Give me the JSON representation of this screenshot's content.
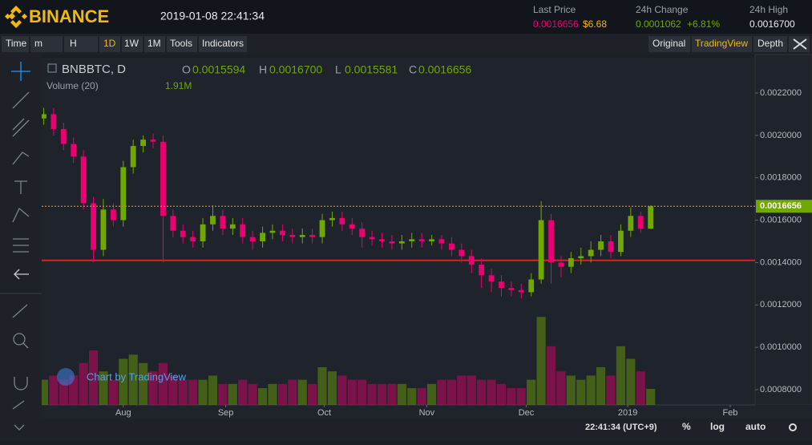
{
  "header": {
    "logo": "BINANCE",
    "datetime": "2019-01-08 22:41:34",
    "stats": [
      {
        "label": "Last Price",
        "values": [
          "0.0016656",
          "$6.68"
        ]
      },
      {
        "label": "24h Change",
        "values": [
          "0.0001062",
          "+6.81%"
        ]
      },
      {
        "label": "24h High",
        "values": [
          "0.0016700"
        ]
      }
    ]
  },
  "toolbar": {
    "left": [
      "Time",
      "m",
      "H",
      "1D",
      "1W",
      "1M",
      "Tools",
      "Indicators"
    ],
    "right": [
      "Original",
      "TradingView",
      "Depth"
    ]
  },
  "chart_data": {
    "type": "candlestick",
    "symbol": "BNBBTC, D",
    "legend": [
      {
        "label": "O",
        "value": "0.0015594"
      },
      {
        "label": "H",
        "value": "0.0016700"
      },
      {
        "label": "L",
        "value": "0.0015581"
      },
      {
        "label": "C",
        "value": "0.0016656"
      }
    ],
    "volume_label": "Volume (20)",
    "volume_value": "1.91M",
    "watermark": "Chart by TradingView",
    "up_color": "#70a800",
    "down_color": "#ea0070",
    "price_line_color": "#f57c00",
    "open": [
      0.00208,
      0.0021,
      0.00203,
      0.00196,
      0.0019,
      0.00168,
      0.00146,
      0.00165,
      0.0016,
      0.00185,
      0.00195,
      0.00198,
      0.00197,
      0.00162,
      0.00155,
      0.00152,
      0.0015,
      0.00158,
      0.00162,
      0.00156,
      0.00158,
      0.00152,
      0.0015,
      0.00154,
      0.00155,
      0.00153,
      0.00152,
      0.00153,
      0.00152,
      0.0016,
      0.00161,
      0.00158,
      0.00156,
      0.00152,
      0.00151,
      0.0015,
      0.00149,
      0.0015,
      0.00151,
      0.0015,
      0.00151,
      0.00149,
      0.00146,
      0.00143,
      0.00139,
      0.00134,
      0.00131,
      0.00128,
      0.00127,
      0.00126,
      0.00132,
      0.0016,
      0.0014,
      0.00138,
      0.00142,
      0.00143,
      0.00146,
      0.0015,
      0.00145,
      0.00155,
      0.00162,
      0.0015594
    ],
    "high": [
      0.00213,
      0.00213,
      0.00206,
      0.00199,
      0.00193,
      0.00171,
      0.0017,
      0.00168,
      0.00188,
      0.00198,
      0.002,
      0.00201,
      0.002,
      0.00165,
      0.00158,
      0.00155,
      0.00161,
      0.00167,
      0.00165,
      0.00161,
      0.00161,
      0.00155,
      0.00157,
      0.00158,
      0.00158,
      0.00156,
      0.00156,
      0.00156,
      0.00163,
      0.00164,
      0.00164,
      0.00161,
      0.00159,
      0.00155,
      0.00154,
      0.00153,
      0.00153,
      0.00154,
      0.00154,
      0.00153,
      0.00153,
      0.00152,
      0.00149,
      0.00146,
      0.00142,
      0.00137,
      0.00134,
      0.00131,
      0.0013,
      0.00135,
      0.00169,
      0.00163,
      0.00143,
      0.00145,
      0.00147,
      0.0015,
      0.00153,
      0.00153,
      0.00158,
      0.00166,
      0.00164,
      0.00167
    ],
    "low": [
      0.00205,
      0.002,
      0.00193,
      0.00187,
      0.00165,
      0.0014,
      0.00143,
      0.00157,
      0.00157,
      0.00182,
      0.00192,
      0.00194,
      0.0014,
      0.00152,
      0.00149,
      0.00147,
      0.00147,
      0.00155,
      0.00153,
      0.00153,
      0.00149,
      0.00146,
      0.00147,
      0.00151,
      0.0015,
      0.00149,
      0.00149,
      0.00149,
      0.00149,
      0.00157,
      0.00155,
      0.00153,
      0.00147,
      0.00148,
      0.00147,
      0.00146,
      0.00146,
      0.00147,
      0.00147,
      0.00148,
      0.00146,
      0.00143,
      0.0014,
      0.00135,
      0.00128,
      0.00126,
      0.00124,
      0.00124,
      0.00123,
      0.00124,
      0.0013,
      0.0013,
      0.00133,
      0.00135,
      0.00139,
      0.0014,
      0.00143,
      0.00142,
      0.00143,
      0.00152,
      0.00154,
      0.0015581
    ],
    "close": [
      0.0021,
      0.00203,
      0.00196,
      0.0019,
      0.00168,
      0.00146,
      0.00165,
      0.0016,
      0.00185,
      0.00195,
      0.00198,
      0.00197,
      0.00162,
      0.00155,
      0.00152,
      0.0015,
      0.00158,
      0.00162,
      0.00156,
      0.00158,
      0.00152,
      0.0015,
      0.00154,
      0.00155,
      0.00153,
      0.00152,
      0.00153,
      0.00152,
      0.0016,
      0.00161,
      0.00158,
      0.00156,
      0.00152,
      0.00151,
      0.0015,
      0.00149,
      0.0015,
      0.00151,
      0.0015,
      0.00151,
      0.00149,
      0.00146,
      0.00143,
      0.00139,
      0.00134,
      0.00131,
      0.00128,
      0.00127,
      0.00126,
      0.00132,
      0.0016,
      0.0014,
      0.00138,
      0.00142,
      0.00143,
      0.00146,
      0.0015,
      0.00145,
      0.00155,
      0.00162,
      0.0015594,
      0.0016656
    ],
    "volume": [
      3,
      3.5,
      3,
      3.5,
      5,
      6.5,
      4,
      3,
      5.5,
      6,
      5,
      4,
      5,
      3.5,
      3,
      3,
      3,
      3.5,
      2.5,
      2.5,
      3,
      2.5,
      2,
      2.5,
      2.5,
      3,
      3,
      2.5,
      4.5,
      4,
      3.5,
      3,
      3,
      2.5,
      2.5,
      2.5,
      2.5,
      2,
      2,
      2.5,
      3,
      3,
      3.5,
      3.5,
      3,
      3,
      2.5,
      2,
      2,
      3,
      10.5,
      7,
      4,
      3.5,
      3,
      3.5,
      4.5,
      3.5,
      7,
      5.5,
      4,
      1.91
    ],
    "volume_lim": [
      0,
      11
    ],
    "xlim": [
      -0.2,
      71.5
    ],
    "xticks": [
      {
        "value": 8,
        "label": "Aug"
      },
      {
        "value": 18.3,
        "label": "Sep"
      },
      {
        "value": 28.2,
        "label": "Oct"
      },
      {
        "value": 38.5,
        "label": "Nov"
      },
      {
        "value": 48.5,
        "label": "Dec"
      },
      {
        "value": 58.7,
        "label": "2019"
      },
      {
        "value": 69,
        "label": "Feb"
      }
    ],
    "ylim": [
      0.000728,
      0.0023665
    ],
    "yticks": [
      {
        "value": 0.0022,
        "label": "0.0022000"
      },
      {
        "value": 0.002,
        "label": "0.0020000"
      },
      {
        "value": 0.0018,
        "label": "0.0018000"
      },
      {
        "value": 0.0016,
        "label": "0.0016000"
      },
      {
        "value": 0.0014,
        "label": "0.0014000"
      },
      {
        "value": 0.0012,
        "label": "0.0012000"
      },
      {
        "value": 0.001,
        "label": "0.0010000"
      },
      {
        "value": 0.0008,
        "label": "0.0008000"
      }
    ],
    "hlines": [
      {
        "value": 0.00141,
        "color": "#e0201e"
      }
    ]
  },
  "footer": {
    "time": "22:41:34 (UTC+9)",
    "buttons": [
      "%",
      "log",
      "auto"
    ]
  }
}
